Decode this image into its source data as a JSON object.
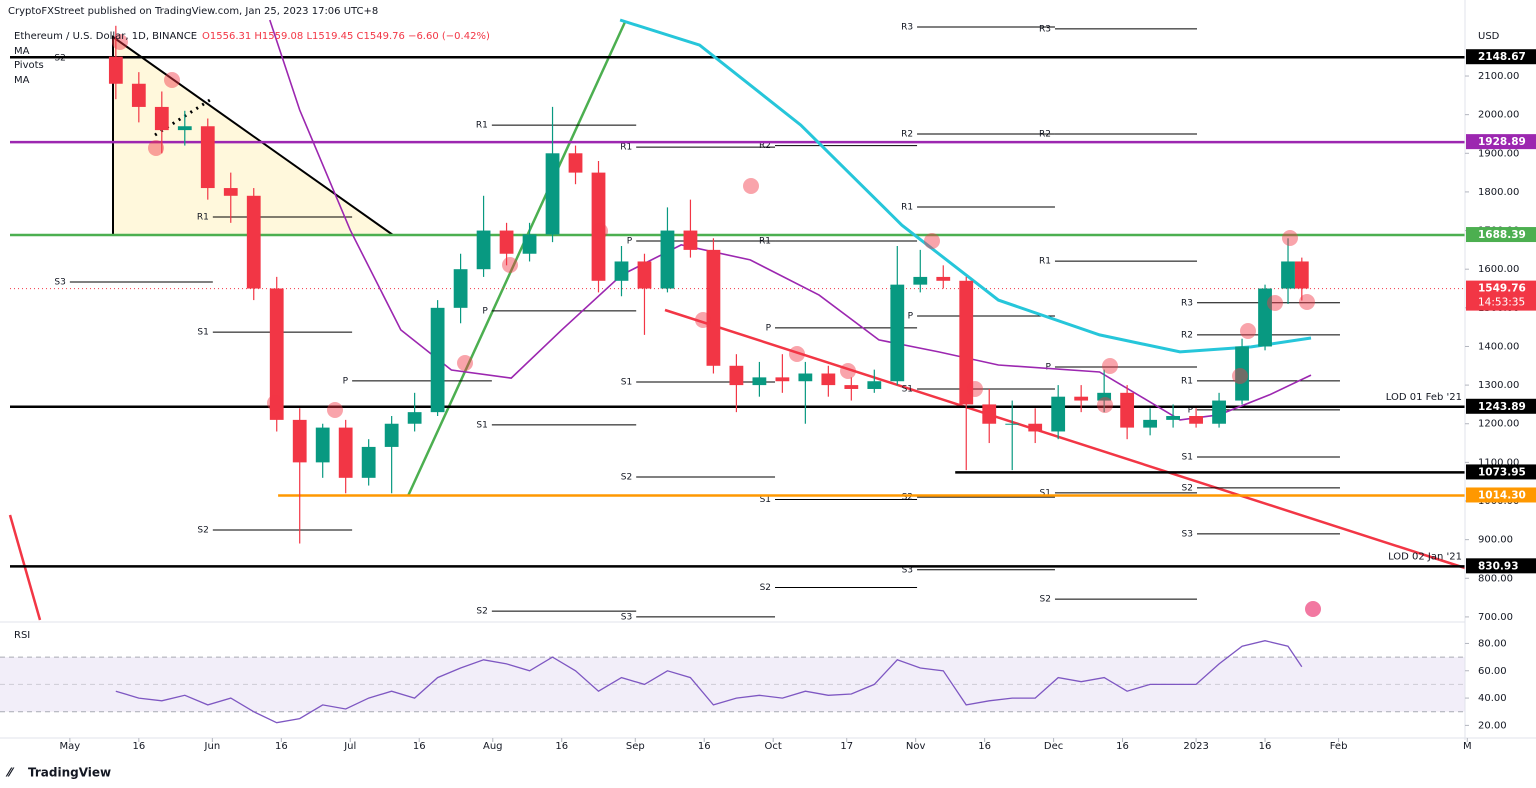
{
  "chart_data": {
    "type": "candlestick",
    "published": "CryptoFXStreet published on TradingView.com, Jan 25, 2023 17:06 UTC+8",
    "symbol": "Ethereum / U.S. Dollar, 1D, BINANCE",
    "ohlc": "O1556.31 H1559.08 L1519.45 C1549.76 −6.60 (−0.42%)",
    "currency": "USD",
    "footer": "TradingView",
    "up_color": "#089981",
    "down_color": "#f23645",
    "xlim": [
      -15.2,
      303.5
    ],
    "xticks": [
      {
        "value": 0,
        "label": "May"
      },
      {
        "value": 15,
        "label": "16"
      },
      {
        "value": 31,
        "label": "Jun"
      },
      {
        "value": 46,
        "label": "16"
      },
      {
        "value": 61,
        "label": "Jul"
      },
      {
        "value": 76,
        "label": "16"
      },
      {
        "value": 92,
        "label": "Aug"
      },
      {
        "value": 107,
        "label": "16"
      },
      {
        "value": 123,
        "label": "Sep"
      },
      {
        "value": 138,
        "label": "16"
      },
      {
        "value": 153,
        "label": "Oct"
      },
      {
        "value": 169,
        "label": "17"
      },
      {
        "value": 184,
        "label": "Nov"
      },
      {
        "value": 199,
        "label": "16"
      },
      {
        "value": 214,
        "label": "Dec"
      },
      {
        "value": 229,
        "label": "16"
      },
      {
        "value": 245,
        "label": "2023"
      },
      {
        "value": 260,
        "label": "16"
      },
      {
        "value": 276,
        "label": "Feb"
      },
      {
        "value": 304,
        "label": "M"
      }
    ],
    "ylim": [
      692,
      2245
    ],
    "yticks": [
      {
        "value": 700,
        "label": "700.00"
      },
      {
        "value": 800,
        "label": "800.00"
      },
      {
        "value": 900,
        "label": "900.00"
      },
      {
        "value": 1000,
        "label": "1000.00"
      },
      {
        "value": 1100,
        "label": "1100.00"
      },
      {
        "value": 1200,
        "label": "1200.00"
      },
      {
        "value": 1300,
        "label": "1300.00"
      },
      {
        "value": 1400,
        "label": "1400.00"
      },
      {
        "value": 1500,
        "label": "1500.00"
      },
      {
        "value": 1600,
        "label": "1600.00"
      },
      {
        "value": 1700,
        "label": "1700.00"
      },
      {
        "value": 1800,
        "label": "1800.00"
      },
      {
        "value": 1900,
        "label": "1900.00"
      },
      {
        "value": 2000,
        "label": "2000.00"
      },
      {
        "value": 2100,
        "label": "2100.00"
      }
    ],
    "x": [
      10,
      15,
      20,
      25,
      30,
      35,
      40,
      45,
      50,
      55,
      60,
      65,
      70,
      75,
      80,
      85,
      90,
      95,
      100,
      105,
      110,
      115,
      120,
      125,
      130,
      135,
      140,
      145,
      150,
      155,
      160,
      165,
      170,
      175,
      180,
      185,
      190,
      195,
      200,
      205,
      210,
      215,
      220,
      225,
      230,
      235,
      240,
      245,
      250,
      255,
      260,
      265,
      268
    ],
    "open": [
      2150,
      2080,
      2020,
      1960,
      1970,
      1810,
      1790,
      1550,
      1210,
      1100,
      1190,
      1060,
      1140,
      1200,
      1230,
      1500,
      1600,
      1700,
      1640,
      1690,
      1900,
      1850,
      1570,
      1620,
      1550,
      1700,
      1650,
      1350,
      1300,
      1320,
      1310,
      1330,
      1300,
      1290,
      1310,
      1560,
      1580,
      1570,
      1250,
      1200,
      1200,
      1180,
      1270,
      1260,
      1280,
      1190,
      1210,
      1220,
      1200,
      1260,
      1400,
      1550,
      1620
    ],
    "high": [
      2230,
      2110,
      2060,
      2010,
      1990,
      1850,
      1810,
      1580,
      1240,
      1200,
      1210,
      1160,
      1220,
      1280,
      1520,
      1640,
      1790,
      1720,
      1720,
      2020,
      1920,
      1880,
      1660,
      1640,
      1760,
      1780,
      1680,
      1380,
      1360,
      1380,
      1360,
      1350,
      1320,
      1340,
      1660,
      1650,
      1610,
      1580,
      1290,
      1260,
      1240,
      1300,
      1300,
      1340,
      1300,
      1240,
      1250,
      1240,
      1280,
      1420,
      1560,
      1680,
      1630
    ],
    "low": [
      2040,
      1980,
      1900,
      1920,
      1780,
      1720,
      1520,
      1180,
      890,
      1060,
      1020,
      1040,
      1020,
      1180,
      1220,
      1460,
      1580,
      1610,
      1620,
      1670,
      1820,
      1540,
      1530,
      1430,
      1540,
      1630,
      1330,
      1230,
      1270,
      1280,
      1200,
      1270,
      1260,
      1280,
      1300,
      1540,
      1550,
      1080,
      1150,
      1080,
      1150,
      1160,
      1230,
      1230,
      1160,
      1170,
      1190,
      1190,
      1190,
      1250,
      1390,
      1510,
      1519
    ],
    "close": [
      2080,
      2020,
      1960,
      1970,
      1810,
      1790,
      1550,
      1210,
      1100,
      1190,
      1060,
      1140,
      1200,
      1230,
      1500,
      1600,
      1700,
      1640,
      1690,
      1900,
      1850,
      1570,
      1620,
      1550,
      1700,
      1650,
      1350,
      1300,
      1320,
      1310,
      1330,
      1300,
      1290,
      1310,
      1560,
      1580,
      1570,
      1250,
      1200,
      1200,
      1180,
      1270,
      1260,
      1280,
      1190,
      1210,
      1220,
      1200,
      1260,
      1400,
      1550,
      1620,
      1550
    ],
    "indicators": [
      {
        "name": "MA",
        "color": "#26c6da",
        "x": [
          119.7,
          137,
          159,
          181,
          202,
          224,
          241.5,
          257,
          270
        ],
        "values": [
          2245,
          2180,
          1973,
          1714,
          1520,
          1430,
          1386,
          1399,
          1422
        ]
      },
      {
        "name": "MA",
        "color": "#9c27b0",
        "x": [
          43.5,
          50,
          61,
          72,
          83,
          96,
          107,
          120,
          133,
          148,
          163,
          176,
          189,
          202,
          224,
          241.5,
          250,
          261,
          270
        ],
        "values": [
          2245,
          2012,
          1701,
          1443,
          1339,
          1318,
          1443,
          1585,
          1663,
          1624,
          1533,
          1417,
          1386,
          1352,
          1334,
          1210,
          1223,
          1275,
          1326
        ]
      }
    ],
    "pivots": {
      "name": "Pivots",
      "levels": [
        {
          "label": "S2",
          "from": 0,
          "to": 31.1,
          "level": 2147
        },
        {
          "label": "S3",
          "from": 0,
          "to": 31.1,
          "level": 1567
        },
        {
          "label": "R1",
          "from": 31.1,
          "to": 61.4,
          "level": 1735
        },
        {
          "label": "S1",
          "from": 31.1,
          "to": 61.4,
          "level": 1437
        },
        {
          "label": "S2",
          "from": 31.1,
          "to": 61.4,
          "level": 925
        },
        {
          "label": "P",
          "from": 61.4,
          "to": 91.8,
          "level": 1311
        },
        {
          "label": "R1",
          "from": 91.8,
          "to": 123.2,
          "level": 1973
        },
        {
          "label": "P",
          "from": 91.8,
          "to": 123.2,
          "level": 1492
        },
        {
          "label": "S1",
          "from": 91.8,
          "to": 123.2,
          "level": 1197
        },
        {
          "label": "S2",
          "from": 91.8,
          "to": 123.2,
          "level": 715
        },
        {
          "label": "R1",
          "from": 123.2,
          "to": 153.4,
          "level": 1916
        },
        {
          "label": "P",
          "from": 123.2,
          "to": 153.4,
          "level": 1673
        },
        {
          "label": "S1",
          "from": 123.2,
          "to": 153.4,
          "level": 1308
        },
        {
          "label": "S2",
          "from": 123.2,
          "to": 153.4,
          "level": 1062
        },
        {
          "label": "S3",
          "from": 123.2,
          "to": 153.4,
          "level": 700
        },
        {
          "label": "R2",
          "from": 153.4,
          "to": 184.3,
          "level": 1920
        },
        {
          "label": "R1",
          "from": 153.4,
          "to": 184.3,
          "level": 1673
        },
        {
          "label": "P",
          "from": 153.4,
          "to": 184.3,
          "level": 1448
        },
        {
          "label": "S1",
          "from": 153.4,
          "to": 184.3,
          "level": 1004
        },
        {
          "label": "S2",
          "from": 153.4,
          "to": 184.3,
          "level": 776
        },
        {
          "label": "R3",
          "from": 184.3,
          "to": 214.3,
          "level": 2227
        },
        {
          "label": "R2",
          "from": 184.3,
          "to": 214.3,
          "level": 1950
        },
        {
          "label": "R1",
          "from": 184.3,
          "to": 214.3,
          "level": 1761
        },
        {
          "label": "P",
          "from": 184.3,
          "to": 214.3,
          "level": 1479
        },
        {
          "label": "S1",
          "from": 184.3,
          "to": 214.3,
          "level": 1290
        },
        {
          "label": "S2",
          "from": 184.3,
          "to": 214.3,
          "level": 1010
        },
        {
          "label": "S3",
          "from": 184.3,
          "to": 214.3,
          "level": 822
        },
        {
          "label": "R3",
          "from": 214.3,
          "to": 245.2,
          "level": 2222
        },
        {
          "label": "R2",
          "from": 214.3,
          "to": 245.2,
          "level": 1950
        },
        {
          "label": "R1",
          "from": 214.3,
          "to": 245.2,
          "level": 1621
        },
        {
          "label": "P",
          "from": 214.3,
          "to": 245.2,
          "level": 1347
        },
        {
          "label": "S1",
          "from": 214.3,
          "to": 245.2,
          "level": 1021
        },
        {
          "label": "S2",
          "from": 214.3,
          "to": 245.2,
          "level": 746
        },
        {
          "label": "R3",
          "from": 245.2,
          "to": 276.3,
          "level": 1513
        },
        {
          "label": "R2",
          "from": 245.2,
          "to": 276.3,
          "level": 1430
        },
        {
          "label": "R1",
          "from": 245.2,
          "to": 276.3,
          "level": 1311
        },
        {
          "label": "P",
          "from": 245.2,
          "to": 276.3,
          "level": 1236
        },
        {
          "label": "S1",
          "from": 245.2,
          "to": 276.3,
          "level": 1114
        },
        {
          "label": "S2",
          "from": 245.2,
          "to": 276.3,
          "level": 1034
        },
        {
          "label": "S3",
          "from": 245.2,
          "to": 276.3,
          "level": 915
        }
      ]
    },
    "levels": [
      {
        "value": 2148.67,
        "color": "#000000"
      },
      {
        "value": 1928.89,
        "color": "#9c27b0"
      },
      {
        "value": 1688.39,
        "color": "#4caf50"
      },
      {
        "value": 1549.76,
        "color": "#f23645",
        "countdown": "14:53:35"
      },
      {
        "value": 1243.89,
        "color": "#000000",
        "note": "LOD 01 Feb '21"
      },
      {
        "value": 1073.95,
        "color": "#000000",
        "from": 192.6
      },
      {
        "value": 1014.3,
        "label": "1014.30",
        "color": "#ff9800",
        "from": 45.3
      },
      {
        "value": 830.93,
        "color": "#000000",
        "note": "LOD 02 Jan '21"
      }
    ],
    "rsi": {
      "title": "RSI",
      "color": "#7e57c2",
      "ylim": [
        11.5,
        93.5
      ],
      "yticks": [
        {
          "value": 20,
          "label": "20.00"
        },
        {
          "value": 40,
          "label": "40.00"
        },
        {
          "value": 60,
          "label": "60.00"
        },
        {
          "value": 80,
          "label": "80.00"
        }
      ],
      "bands": [
        30,
        50,
        70
      ],
      "values": [
        45,
        40,
        38,
        42,
        35,
        40,
        30,
        22,
        25,
        35,
        32,
        40,
        45,
        40,
        55,
        62,
        68,
        65,
        60,
        70,
        60,
        45,
        55,
        50,
        60,
        55,
        35,
        40,
        42,
        40,
        45,
        42,
        43,
        50,
        68,
        62,
        60,
        35,
        38,
        40,
        40,
        55,
        52,
        55,
        45,
        50,
        50,
        50,
        65,
        78,
        82,
        78,
        63
      ]
    }
  }
}
